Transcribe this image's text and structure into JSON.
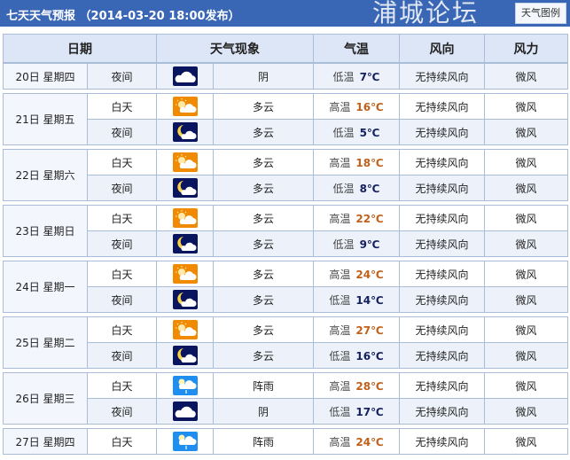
{
  "header": {
    "title": "七天天气预报 （2014-03-20 18:00发布）",
    "legend_button": "天气图例"
  },
  "columns": [
    "日期",
    "天气现象",
    "气温",
    "风向",
    "风力"
  ],
  "colors": {
    "header_bar": "#3a66b6",
    "high_temp": "#c0601a",
    "low_temp": "#142060"
  },
  "days": [
    {
      "date": "20日 星期四",
      "periods": [
        {
          "label": "夜间",
          "icon": "overcast-icon",
          "weather": "阴",
          "temp_label": "低温",
          "temp": "7℃",
          "wind_dir": "无持续风向",
          "wind_force": "微风"
        }
      ]
    },
    {
      "date": "21日 星期五",
      "periods": [
        {
          "label": "白天",
          "icon": "partly-cloudy-day-icon",
          "weather": "多云",
          "temp_label": "高温",
          "temp": "16℃",
          "wind_dir": "无持续风向",
          "wind_force": "微风"
        },
        {
          "label": "夜间",
          "icon": "partly-cloudy-night-icon",
          "weather": "多云",
          "temp_label": "低温",
          "temp": "5℃",
          "wind_dir": "无持续风向",
          "wind_force": "微风"
        }
      ]
    },
    {
      "date": "22日 星期六",
      "periods": [
        {
          "label": "白天",
          "icon": "partly-cloudy-day-icon",
          "weather": "多云",
          "temp_label": "高温",
          "temp": "18℃",
          "wind_dir": "无持续风向",
          "wind_force": "微风"
        },
        {
          "label": "夜间",
          "icon": "partly-cloudy-night-icon",
          "weather": "多云",
          "temp_label": "低温",
          "temp": "8℃",
          "wind_dir": "无持续风向",
          "wind_force": "微风"
        }
      ]
    },
    {
      "date": "23日 星期日",
      "periods": [
        {
          "label": "白天",
          "icon": "partly-cloudy-day-icon",
          "weather": "多云",
          "temp_label": "高温",
          "temp": "22℃",
          "wind_dir": "无持续风向",
          "wind_force": "微风"
        },
        {
          "label": "夜间",
          "icon": "partly-cloudy-night-icon",
          "weather": "多云",
          "temp_label": "低温",
          "temp": "9℃",
          "wind_dir": "无持续风向",
          "wind_force": "微风"
        }
      ]
    },
    {
      "date": "24日 星期一",
      "periods": [
        {
          "label": "白天",
          "icon": "partly-cloudy-day-icon",
          "weather": "多云",
          "temp_label": "高温",
          "temp": "24℃",
          "wind_dir": "无持续风向",
          "wind_force": "微风"
        },
        {
          "label": "夜间",
          "icon": "partly-cloudy-night-icon",
          "weather": "多云",
          "temp_label": "低温",
          "temp": "14℃",
          "wind_dir": "无持续风向",
          "wind_force": "微风"
        }
      ]
    },
    {
      "date": "25日 星期二",
      "periods": [
        {
          "label": "白天",
          "icon": "partly-cloudy-day-icon",
          "weather": "多云",
          "temp_label": "高温",
          "temp": "27℃",
          "wind_dir": "无持续风向",
          "wind_force": "微风"
        },
        {
          "label": "夜间",
          "icon": "partly-cloudy-night-icon",
          "weather": "多云",
          "temp_label": "低温",
          "temp": "16℃",
          "wind_dir": "无持续风向",
          "wind_force": "微风"
        }
      ]
    },
    {
      "date": "26日 星期三",
      "periods": [
        {
          "label": "白天",
          "icon": "shower-icon",
          "weather": "阵雨",
          "temp_label": "高温",
          "temp": "28℃",
          "wind_dir": "无持续风向",
          "wind_force": "微风"
        },
        {
          "label": "夜间",
          "icon": "overcast-icon",
          "weather": "阴",
          "temp_label": "低温",
          "temp": "17℃",
          "wind_dir": "无持续风向",
          "wind_force": "微风"
        }
      ]
    },
    {
      "date": "27日 星期四",
      "periods": [
        {
          "label": "白天",
          "icon": "shower-icon",
          "weather": "阵雨",
          "temp_label": "高温",
          "temp": "24℃",
          "wind_dir": "无持续风向",
          "wind_force": "微风"
        }
      ]
    }
  ],
  "watermark": "浦城论坛"
}
